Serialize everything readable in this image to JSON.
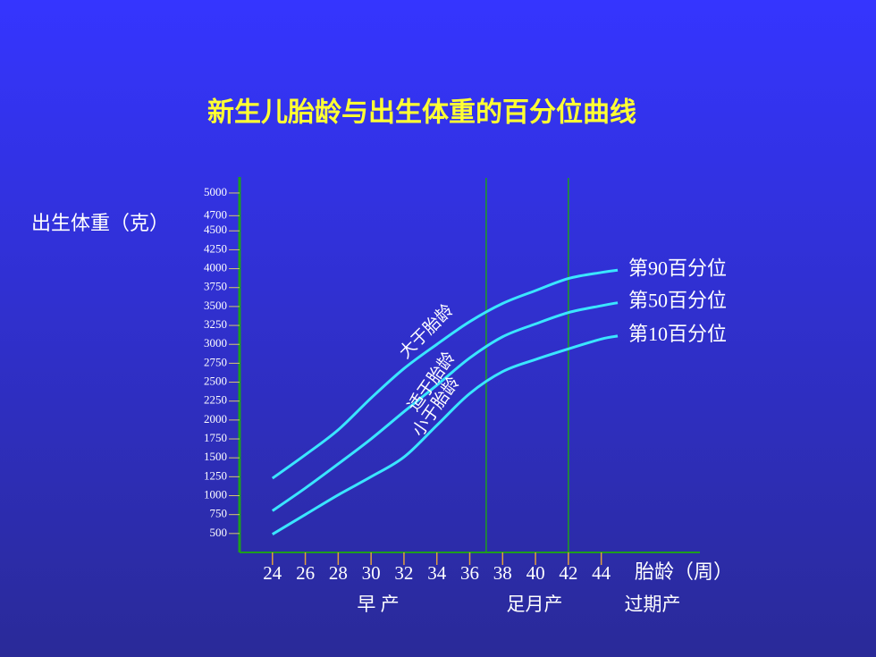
{
  "chart_data": {
    "type": "line",
    "title": "新生儿胎龄与出生体重的百分位曲线",
    "y_label": "出生体重（克）",
    "x_label": "胎龄（周）",
    "x": [
      24,
      26,
      28,
      30,
      32,
      34,
      36,
      38,
      40,
      42,
      44,
      45
    ],
    "series": [
      {
        "name": "第90百分位",
        "color": "#3ae6ff",
        "values": [
          1230,
          1540,
          1870,
          2290,
          2680,
          3000,
          3300,
          3540,
          3710,
          3870,
          3950,
          3980
        ]
      },
      {
        "name": "第50百分位",
        "color": "#3ae6ff",
        "values": [
          800,
          1100,
          1420,
          1750,
          2110,
          2460,
          2820,
          3100,
          3270,
          3420,
          3510,
          3550
        ]
      },
      {
        "name": "第10百分位",
        "color": "#3ae6ff",
        "values": [
          490,
          750,
          1010,
          1250,
          1510,
          1930,
          2350,
          2640,
          2800,
          2940,
          3070,
          3110
        ]
      }
    ],
    "annotations": [
      "大于胎龄",
      "适于胎龄",
      "小于胎龄"
    ],
    "period_labels": [
      "早 产",
      "足月产",
      "过期产"
    ],
    "reference_lines": [
      37,
      42
    ],
    "xlim": [
      22,
      50
    ],
    "ylim": [
      250,
      5200
    ],
    "xticks": [
      24,
      26,
      28,
      30,
      32,
      34,
      36,
      38,
      40,
      42,
      44
    ],
    "yticks": [
      500,
      750,
      1000,
      1250,
      1500,
      1750,
      2000,
      2250,
      2500,
      2750,
      3000,
      3250,
      3500,
      3750,
      4000,
      4250,
      4500,
      4700,
      5000
    ]
  }
}
